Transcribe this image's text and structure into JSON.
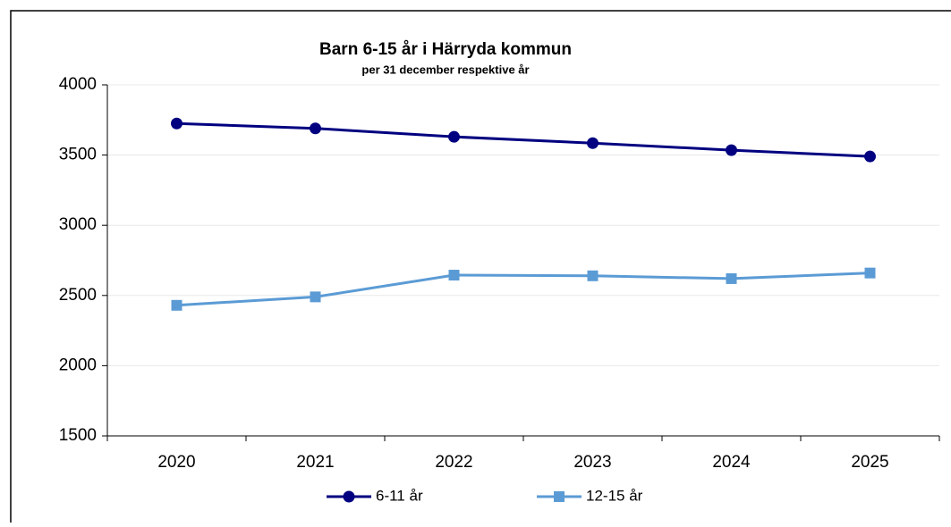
{
  "chart_data": {
    "type": "line",
    "title": "Barn 6-15 år i Härryda kommun",
    "subtitle": "per 31 december respektive år",
    "categories": [
      "2020",
      "2021",
      "2022",
      "2023",
      "2024",
      "2025"
    ],
    "series": [
      {
        "name": "6-11 år",
        "color": "#000080",
        "marker": "circle",
        "values": [
          3725,
          3690,
          3630,
          3585,
          3535,
          3490
        ]
      },
      {
        "name": "12-15 år",
        "color": "#5b9bd5",
        "marker": "square",
        "values": [
          2430,
          2490,
          2645,
          2640,
          2620,
          2660
        ]
      }
    ],
    "ylim": [
      1500,
      4000
    ],
    "yticks": [
      1500,
      2000,
      2500,
      3000,
      3500,
      4000
    ],
    "grid": true
  }
}
